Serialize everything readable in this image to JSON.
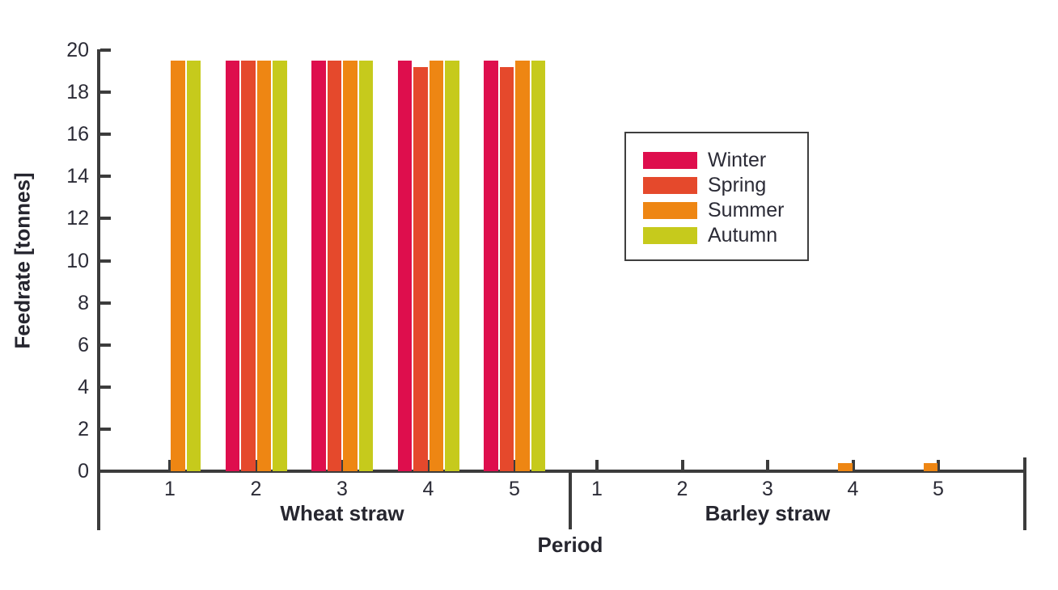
{
  "chart_data": {
    "type": "bar",
    "title": "",
    "ylabel": "Feedrate [tonnes]",
    "xlabel": "Period",
    "ylim": [
      0,
      20
    ],
    "yticks": [
      0,
      2,
      4,
      6,
      8,
      10,
      12,
      14,
      16,
      18,
      20
    ],
    "grid": false,
    "legend": {
      "position": "upper-right",
      "border": true,
      "entries": [
        {
          "label": "Winter",
          "color": "#DE0E4D"
        },
        {
          "label": "Spring",
          "color": "#E5492C"
        },
        {
          "label": "Summer",
          "color": "#EE8613"
        },
        {
          "label": "Autumn",
          "color": "#C6CA1C"
        }
      ]
    },
    "sections": [
      {
        "label": "Wheat straw",
        "categories": [
          "1",
          "2",
          "3",
          "4",
          "5"
        ],
        "series": [
          {
            "name": "Winter",
            "values": [
              0,
              19.5,
              19.5,
              19.5,
              19.5
            ]
          },
          {
            "name": "Spring",
            "values": [
              0,
              19.5,
              19.5,
              19.2,
              19.2
            ]
          },
          {
            "name": "Summer",
            "values": [
              19.5,
              19.5,
              19.5,
              19.5,
              19.5
            ]
          },
          {
            "name": "Autumn",
            "values": [
              19.5,
              19.5,
              19.5,
              19.5,
              19.5
            ]
          }
        ]
      },
      {
        "label": "Barley straw",
        "categories": [
          "1",
          "2",
          "3",
          "4",
          "5"
        ],
        "series": [
          {
            "name": "Winter",
            "values": [
              0,
              0,
              0,
              0,
              0
            ]
          },
          {
            "name": "Spring",
            "values": [
              0,
              0,
              0,
              0,
              0
            ]
          },
          {
            "name": "Summer",
            "values": [
              0,
              0,
              0,
              0.4,
              0.4
            ]
          },
          {
            "name": "Autumn",
            "values": [
              0,
              0,
              0,
              0,
              0
            ]
          }
        ]
      }
    ]
  }
}
